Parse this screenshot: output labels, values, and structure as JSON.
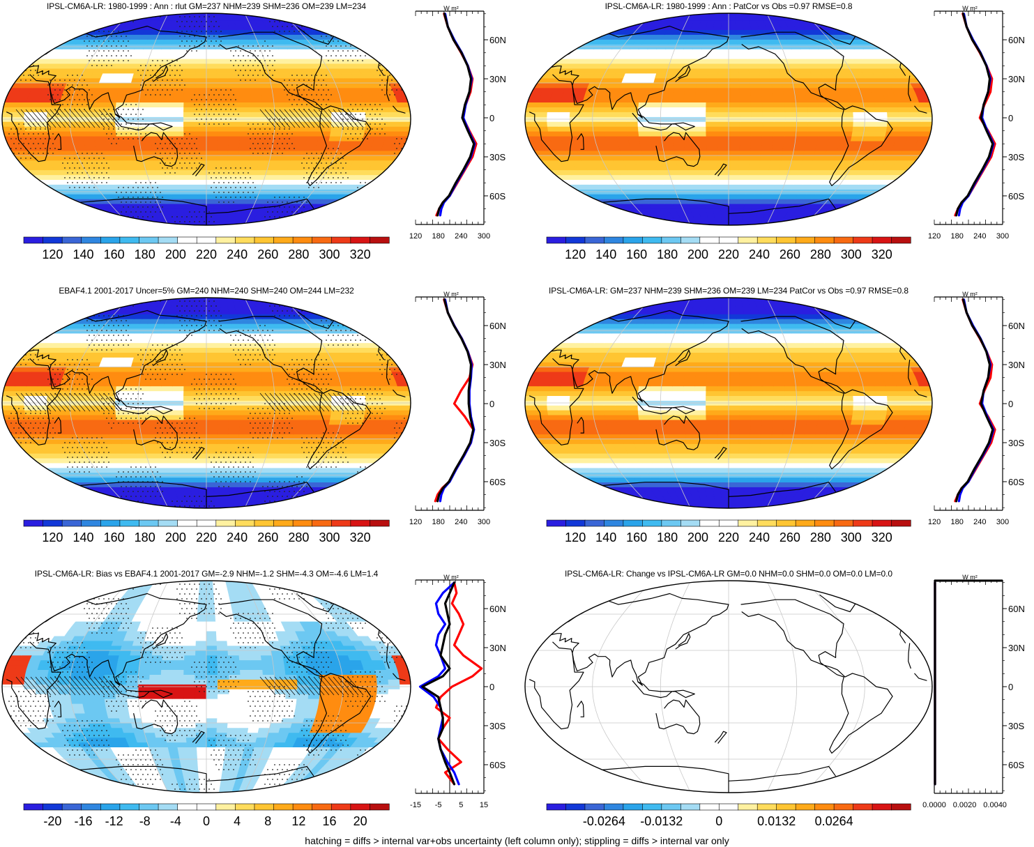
{
  "footnote": "hatching = diffs > internal var+obs uncertainty (left column only); stippling = diffs > internal var only",
  "palettes": {
    "diverging18": [
      "#2a1ee0",
      "#1238d8",
      "#3a66d6",
      "#2f86e0",
      "#2aa4ea",
      "#3fbaf0",
      "#6cc8f2",
      "#a4dcf4",
      "#ffffff",
      "#ffffff",
      "#fff1a0",
      "#ffdc5c",
      "#ffc532",
      "#ffaa1a",
      "#ff8c10",
      "#f86a12",
      "#ee3a18",
      "#d81414",
      "#b80f0f"
    ]
  },
  "panels": [
    {
      "id": "model-clim",
      "title": "IPSL-CM6A-LR: 1980-1999 : Ann : rlut GM=237 NHM=239 SHM=236 OM=239 LM=234",
      "map_center": "pacific",
      "field": "olr",
      "stippling": true,
      "hatching": true,
      "colorbar_labels": [
        "120",
        "140",
        "160",
        "180",
        "200",
        "220",
        "240",
        "260",
        "280",
        "300",
        "320"
      ],
      "zonal": {
        "unit": "W m²",
        "xticks": [
          "120",
          "180",
          "240",
          "300"
        ],
        "xlim": [
          120,
          300
        ],
        "yticks": [
          "60N",
          "30N",
          "0",
          "30S",
          "60S"
        ],
        "series": [
          {
            "color": "#ff0000",
            "x": [
              195,
              205,
              220,
              240,
              258,
              270,
              265,
              252,
              245,
              262,
              280,
              270,
              250,
              230,
              210,
              192,
              182,
              175
            ],
            "y": [
              80,
              70,
              60,
              50,
              40,
              30,
              20,
              10,
              0,
              -10,
              -20,
              -30,
              -40,
              -50,
              -60,
              -65,
              -70,
              -75
            ]
          },
          {
            "color": "#0000ff",
            "x": [
              198,
              205,
              222,
              242,
              258,
              268,
              262,
              252,
              246,
              260,
              276,
              266,
              248,
              228,
              210,
              195,
              188,
              185
            ],
            "y": [
              80,
              70,
              60,
              50,
              40,
              30,
              20,
              10,
              0,
              -10,
              -20,
              -30,
              -40,
              -50,
              -60,
              -65,
              -70,
              -75
            ]
          },
          {
            "color": "#000000",
            "x": [
              196,
              205,
              220,
              241,
              257,
              266,
              262,
              250,
              243,
              258,
              274,
              264,
              246,
              226,
              208,
              192,
              182,
              178
            ],
            "y": [
              80,
              70,
              60,
              50,
              40,
              30,
              20,
              10,
              0,
              -10,
              -20,
              -30,
              -40,
              -50,
              -60,
              -65,
              -70,
              -75
            ]
          }
        ]
      }
    },
    {
      "id": "model-pattern",
      "title": "IPSL-CM6A-LR: 1980-1999 : Ann : PatCor vs Obs =0.97 RMSE=0.8",
      "map_center": "pacific",
      "field": "olr",
      "stippling": false,
      "hatching": false,
      "colorbar_labels": [
        "120",
        "140",
        "160",
        "180",
        "200",
        "220",
        "240",
        "260",
        "280",
        "300",
        "320"
      ],
      "zonal": {
        "unit": "W m²",
        "xticks": [
          "120",
          "180",
          "240",
          "300"
        ],
        "xlim": [
          120,
          300
        ],
        "yticks": [
          "60N",
          "30N",
          "0",
          "30S",
          "60S"
        ],
        "series": [
          {
            "color": "#ff0000",
            "x": [
              195,
              205,
              220,
              240,
              258,
              272,
              268,
              252,
              240,
              262,
              280,
              270,
              250,
              230,
              210,
              192,
              182,
              175
            ],
            "y": [
              80,
              70,
              60,
              50,
              40,
              30,
              20,
              10,
              0,
              -10,
              -20,
              -30,
              -40,
              -50,
              -60,
              -65,
              -70,
              -75
            ]
          },
          {
            "color": "#0000ff",
            "x": [
              198,
              205,
              222,
              242,
              258,
              268,
              262,
              250,
              246,
              260,
              276,
              266,
              248,
              228,
              210,
              195,
              188,
              185
            ],
            "y": [
              80,
              70,
              60,
              50,
              40,
              30,
              20,
              10,
              0,
              -10,
              -20,
              -30,
              -40,
              -50,
              -60,
              -65,
              -70,
              -75
            ]
          },
          {
            "color": "#000000",
            "x": [
              196,
              205,
              220,
              241,
              257,
              266,
              262,
              250,
              243,
              258,
              274,
              264,
              246,
              226,
              208,
              192,
              182,
              178
            ],
            "y": [
              80,
              70,
              60,
              50,
              40,
              30,
              20,
              10,
              0,
              -10,
              -20,
              -30,
              -40,
              -50,
              -60,
              -65,
              -70,
              -75
            ]
          }
        ]
      }
    },
    {
      "id": "obs-clim",
      "title": "EBAF4.1 2001-2017 Uncer=5% GM=240 NHM=240 SHM=240 OM=244 LM=232",
      "map_center": "pacific",
      "field": "olr",
      "stippling": true,
      "hatching": true,
      "colorbar_labels": [
        "120",
        "140",
        "160",
        "180",
        "200",
        "220",
        "240",
        "260",
        "280",
        "300",
        "320"
      ],
      "zonal": {
        "unit": "W m²",
        "xticks": [
          "120",
          "180",
          "240",
          "300"
        ],
        "xlim": [
          120,
          300
        ],
        "yticks": [
          "60N",
          "30N",
          "0",
          "30S",
          "60S"
        ],
        "series": [
          {
            "color": "#ff0000",
            "x": [
              195,
              205,
              222,
              242,
              258,
              270,
              262,
              240,
              222,
              250,
              272,
              266,
              248,
              228,
              208,
              190,
              178,
              172
            ],
            "y": [
              80,
              70,
              60,
              50,
              40,
              30,
              20,
              10,
              0,
              -10,
              -20,
              -30,
              -40,
              -50,
              -60,
              -65,
              -70,
              -75
            ]
          },
          {
            "color": "#0000ff",
            "x": [
              198,
              205,
              222,
              242,
              258,
              268,
              266,
              262,
              262,
              266,
              274,
              266,
              248,
              228,
              210,
              195,
              188,
              185
            ],
            "y": [
              80,
              70,
              60,
              50,
              40,
              30,
              20,
              10,
              0,
              -10,
              -20,
              -30,
              -40,
              -50,
              -60,
              -65,
              -70,
              -75
            ]
          },
          {
            "color": "#000000",
            "x": [
              196,
              205,
              221,
              241,
              257,
              266,
              264,
              260,
              260,
              264,
              272,
              264,
              246,
              226,
              208,
              192,
              182,
              178
            ],
            "y": [
              80,
              70,
              60,
              50,
              40,
              30,
              20,
              10,
              0,
              -10,
              -20,
              -30,
              -40,
              -50,
              -60,
              -65,
              -70,
              -75
            ]
          }
        ]
      }
    },
    {
      "id": "model-summary",
      "title": "IPSL-CM6A-LR: GM=237 NHM=239 SHM=236 OM=239 LM=234 PatCor vs Obs =0.97 RMSE=0.8",
      "map_center": "pacific",
      "field": "olr",
      "stippling": false,
      "hatching": false,
      "colorbar_labels": [
        "120",
        "140",
        "160",
        "180",
        "200",
        "220",
        "240",
        "260",
        "280",
        "300",
        "320"
      ],
      "zonal": {
        "unit": "W m²",
        "xticks": [
          "120",
          "180",
          "240",
          "300"
        ],
        "xlim": [
          120,
          300
        ],
        "yticks": [
          "60N",
          "30N",
          "0",
          "30S",
          "60S"
        ],
        "series": [
          {
            "color": "#ff0000",
            "x": [
              195,
              205,
              220,
              240,
              258,
              272,
              268,
              252,
              240,
              262,
              280,
              270,
              250,
              230,
              210,
              192,
              182,
              175
            ],
            "y": [
              80,
              70,
              60,
              50,
              40,
              30,
              20,
              10,
              0,
              -10,
              -20,
              -30,
              -40,
              -50,
              -60,
              -65,
              -70,
              -75
            ]
          },
          {
            "color": "#0000ff",
            "x": [
              198,
              205,
              222,
              242,
              258,
              268,
              262,
              250,
              246,
              260,
              276,
              266,
              248,
              228,
              210,
              195,
              188,
              185
            ],
            "y": [
              80,
              70,
              60,
              50,
              40,
              30,
              20,
              10,
              0,
              -10,
              -20,
              -30,
              -40,
              -50,
              -60,
              -65,
              -70,
              -75
            ]
          },
          {
            "color": "#000000",
            "x": [
              196,
              205,
              220,
              241,
              257,
              266,
              262,
              250,
              243,
              258,
              274,
              264,
              246,
              226,
              208,
              192,
              182,
              178
            ],
            "y": [
              80,
              70,
              60,
              50,
              40,
              30,
              20,
              10,
              0,
              -10,
              -20,
              -30,
              -40,
              -50,
              -60,
              -65,
              -70,
              -75
            ]
          }
        ]
      }
    },
    {
      "id": "bias",
      "title": "IPSL-CM6A-LR: Bias vs EBAF4.1 2001-2017 GM=-2.9 NHM=-1.2 SHM=-4.3 OM=-4.6 LM=1.4",
      "map_center": "pacific",
      "field": "bias",
      "stippling": true,
      "hatching": true,
      "colorbar_labels": [
        "-20",
        "-16",
        "-12",
        "-8",
        "-4",
        "0",
        "4",
        "8",
        "12",
        "16",
        "20"
      ],
      "zonal": {
        "unit": "W m²",
        "xticks": [
          "-15",
          "-5",
          "5",
          "15"
        ],
        "xlim": [
          -15,
          15
        ],
        "yticks": [
          "60N",
          "30N",
          "0",
          "30S",
          "60S"
        ],
        "zero_line": true,
        "series": [
          {
            "color": "#ff0000",
            "x": [
              2,
              3,
              1,
              4,
              6,
              4,
              2,
              6,
              14,
              10,
              1,
              -4,
              -6,
              0,
              -3,
              -5,
              -1,
              5,
              -2,
              2
            ],
            "y": [
              80,
              72,
              64,
              56,
              48,
              40,
              32,
              24,
              14,
              8,
              0,
              -8,
              -16,
              -24,
              -32,
              -40,
              -48,
              -58,
              -66,
              -75
            ]
          },
          {
            "color": "#0000ff",
            "x": [
              2,
              -3,
              -6,
              -5,
              -2,
              -5,
              -6,
              -4,
              -2,
              -5,
              -13,
              -7,
              -4,
              -3,
              -4,
              -5,
              -4,
              -1,
              2,
              4
            ],
            "y": [
              80,
              72,
              64,
              56,
              48,
              40,
              32,
              24,
              14,
              8,
              0,
              -8,
              -16,
              -24,
              -32,
              -40,
              -48,
              -58,
              -66,
              -75
            ]
          },
          {
            "color": "#000000",
            "x": [
              2,
              0,
              -2,
              -1,
              0,
              -2,
              -3,
              -4,
              0,
              -3,
              -12,
              -5,
              -4,
              -3,
              -3,
              -5,
              -4,
              -2,
              0,
              2
            ],
            "y": [
              80,
              72,
              64,
              56,
              48,
              40,
              32,
              24,
              14,
              8,
              0,
              -8,
              -16,
              -24,
              -32,
              -40,
              -48,
              -58,
              -66,
              -75
            ]
          }
        ]
      }
    },
    {
      "id": "change",
      "title": "IPSL-CM6A-LR: Change vs IPSL-CM6A-LR GM=0.0 NHM=0.0 SHM=0.0 OM=0.0 LM=0.0",
      "map_center": "pacific",
      "field": "blank",
      "stippling": false,
      "hatching": false,
      "colorbar_labels": [
        "-0.0264",
        "-0.0132",
        "0",
        "0.0132",
        "0.0264"
      ],
      "zonal": {
        "unit": "W m²",
        "xticks": [
          "0.0000",
          "0.0020",
          "0.0040"
        ],
        "xlim": [
          0,
          0.0045
        ],
        "yticks": [
          "60N",
          "30N",
          "0",
          "30S",
          "60S"
        ],
        "flat_zero": true,
        "series": [
          {
            "color": "#ff0000",
            "x": [
              0,
              0
            ],
            "y": [
              80,
              -75
            ]
          },
          {
            "color": "#0000ff",
            "x": [
              0,
              0
            ],
            "y": [
              80,
              -75
            ]
          },
          {
            "color": "#000000",
            "x": [
              0,
              0
            ],
            "y": [
              80,
              -75
            ]
          }
        ]
      }
    }
  ]
}
